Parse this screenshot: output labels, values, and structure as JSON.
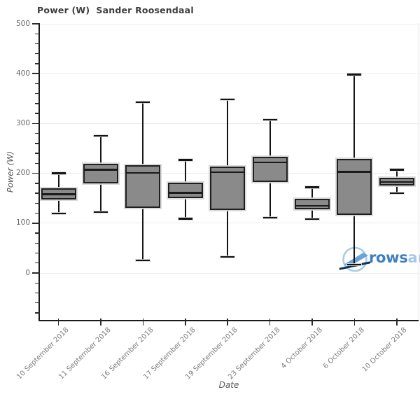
{
  "chart_data": {
    "type": "boxplot",
    "title": "Power (W)  Sander Roosendaal",
    "xlabel": "Date",
    "ylabel": "Power (W)",
    "legend": null,
    "grid": "horizontal-major",
    "ylim": [
      -95,
      503
    ],
    "y_major_ticks": [
      0,
      100,
      200,
      300,
      400,
      500
    ],
    "y_minor_step": 20,
    "y_minor_range": [
      -80,
      480
    ],
    "categories": [
      "10 September 2018",
      "11 September 2018",
      "16 September 2018",
      "17 September 2018",
      "19 September 2018",
      "23 September 2018",
      "4 October 2018",
      "6 October 2018",
      "10 October 2018"
    ],
    "boxes": [
      {
        "low": 119,
        "q1": 147,
        "median": 158,
        "q3": 170,
        "high": 200
      },
      {
        "low": 122,
        "q1": 180,
        "median": 207,
        "q3": 219,
        "high": 275
      },
      {
        "low": 25,
        "q1": 130,
        "median": 201,
        "q3": 216,
        "high": 343
      },
      {
        "low": 109,
        "q1": 150,
        "median": 161,
        "q3": 181,
        "high": 227
      },
      {
        "low": 32,
        "q1": 127,
        "median": 202,
        "q3": 214,
        "high": 348
      },
      {
        "low": 111,
        "q1": 183,
        "median": 222,
        "q3": 233,
        "high": 308
      },
      {
        "low": 108,
        "q1": 128,
        "median": 135,
        "q3": 149,
        "high": 172
      },
      {
        "low": 17,
        "q1": 117,
        "median": 203,
        "q3": 229,
        "high": 398
      },
      {
        "low": 160,
        "q1": 175,
        "median": 183,
        "q3": 191,
        "high": 207
      }
    ]
  },
  "watermark": {
    "text_dark": "rows",
    "text_light": "andall",
    "icon": "rowing-boat-in-circle"
  },
  "colors": {
    "box_fill": "#8a8a8a",
    "box_edge": "#1f1f1f",
    "median": "#1a1a1a",
    "whisker": "#141414",
    "grid": "#ececec",
    "spine": "#1a1a1a",
    "right_spine": "#e3e3e3",
    "tick": "#2b2b2b",
    "tick_label": "#666666",
    "date_label": "#7c7c7c",
    "title": "#3d3d3d",
    "axis_label": "#555555",
    "logo_text_dark": "#3f7fc1",
    "logo_text_light": "#a5c8e9",
    "logo_circle": "#a9cce9",
    "logo_boat": "#6aa3d8",
    "logo_hull": "#12344f"
  }
}
